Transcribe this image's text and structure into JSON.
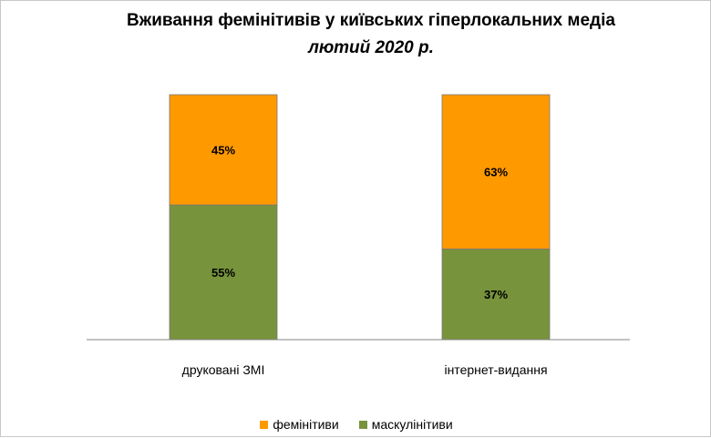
{
  "chart_data": {
    "type": "bar",
    "stacked": true,
    "percent": true,
    "title": "Вживання фемінітивів у київських гіперлокальних медіа",
    "subtitle": "лютий 2020 р.",
    "categories": [
      "друковані ЗМІ",
      "інтернет-видання"
    ],
    "series": [
      {
        "name": "маскулінітиви",
        "values": [
          55,
          37
        ],
        "labels": [
          "55%",
          "37%"
        ],
        "color": "#77933c"
      },
      {
        "name": "фемінітиви",
        "values": [
          45,
          63
        ],
        "labels": [
          "45%",
          "63%"
        ],
        "color": "#ff9900"
      }
    ],
    "legend_order": [
      1,
      0
    ],
    "legend_position": "bottom",
    "ylim": [
      0,
      100
    ],
    "grid": false
  }
}
